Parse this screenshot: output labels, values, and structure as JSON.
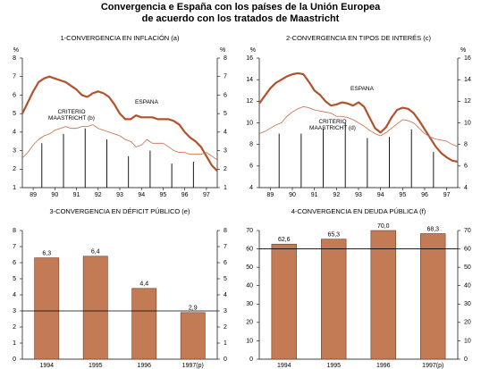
{
  "title": [
    "Convergencia e España con los países de la Unión Europea",
    "de acuerdo con los tratados de Maastricht"
  ],
  "chart_data": [
    {
      "type": "line",
      "title": "1-CONVERGENCIA EN INFLACIÓN (a)",
      "ylabel": "%",
      "y2label": "%",
      "x": [
        88.5,
        88.75,
        89,
        89.25,
        89.5,
        89.75,
        90,
        90.25,
        90.5,
        90.75,
        91,
        91.25,
        91.5,
        91.75,
        92,
        92.25,
        92.5,
        92.75,
        93,
        93.25,
        93.5,
        93.75,
        94,
        94.25,
        94.5,
        94.75,
        95,
        95.25,
        95.5,
        95.75,
        96,
        96.25,
        96.5,
        96.75,
        97,
        97.25,
        97.5
      ],
      "xlim": [
        88.5,
        97.5
      ],
      "xticks": [
        89,
        90,
        91,
        92,
        93,
        94,
        95,
        96,
        97
      ],
      "ylim": [
        1,
        8
      ],
      "yticks": [
        1,
        2,
        3,
        4,
        5,
        6,
        7,
        8
      ],
      "y2lim": [
        1,
        8
      ],
      "y2ticks": [
        1,
        2,
        3,
        4,
        5,
        6,
        7,
        8
      ],
      "series": [
        {
          "name": "ESPAÑA",
          "color": "#b0532c",
          "width": 2.2,
          "values": [
            5.0,
            5.6,
            6.2,
            6.7,
            6.9,
            7.0,
            6.9,
            6.8,
            6.7,
            6.5,
            6.3,
            6.0,
            5.9,
            6.1,
            6.2,
            6.1,
            5.9,
            5.5,
            5.0,
            4.7,
            4.7,
            4.9,
            4.8,
            4.8,
            4.8,
            4.7,
            4.7,
            4.7,
            4.6,
            4.4,
            4.0,
            3.7,
            3.5,
            3.2,
            2.7,
            2.2,
            1.9
          ]
        },
        {
          "name": "CRITERIO MAASTRICHT (b)",
          "color": "#c86a45",
          "width": 0.8,
          "values": [
            2.6,
            2.9,
            3.3,
            3.6,
            3.8,
            3.9,
            4.1,
            4.2,
            4.3,
            4.2,
            4.2,
            4.3,
            4.3,
            4.4,
            4.2,
            4.1,
            4.0,
            3.9,
            3.8,
            3.6,
            3.5,
            3.2,
            3.3,
            3.6,
            3.4,
            3.4,
            3.4,
            3.2,
            3.0,
            2.9,
            2.9,
            2.8,
            2.8,
            2.8,
            2.9,
            2.7,
            2.5
          ]
        },
        {
          "type": "stem",
          "color": "#000000",
          "x": [
            89.4,
            90.4,
            91.4,
            92.4,
            93.4,
            94.4,
            95.4,
            96.4
          ],
          "values": [
            3.4,
            3.9,
            4.2,
            3.6,
            2.7,
            3.0,
            2.3,
            2.4
          ]
        }
      ]
    },
    {
      "type": "line",
      "title": "2-CONVERGENCIA EN TIPOS DE INTERÉS (c)",
      "ylabel": "%",
      "y2label": "%",
      "x": [
        88.5,
        88.75,
        89,
        89.25,
        89.5,
        89.75,
        90,
        90.25,
        90.5,
        90.75,
        91,
        91.25,
        91.5,
        91.75,
        92,
        92.25,
        92.5,
        92.75,
        93,
        93.25,
        93.5,
        93.75,
        94,
        94.25,
        94.5,
        94.75,
        95,
        95.25,
        95.5,
        95.75,
        96,
        96.25,
        96.5,
        96.75,
        97,
        97.25,
        97.5
      ],
      "xlim": [
        88.5,
        97.5
      ],
      "xticks": [
        89,
        90,
        91,
        92,
        93,
        94,
        95,
        96,
        97
      ],
      "ylim": [
        4,
        16
      ],
      "yticks": [
        4,
        6,
        8,
        10,
        12,
        14,
        16
      ],
      "y2lim": [
        4,
        16
      ],
      "y2ticks": [
        4,
        6,
        8,
        10,
        12,
        14,
        16
      ],
      "series": [
        {
          "name": "ESPAÑA",
          "color": "#b0532c",
          "width": 2.2,
          "values": [
            11.8,
            12.5,
            13.2,
            13.7,
            14.0,
            14.3,
            14.5,
            14.6,
            14.5,
            13.8,
            13.0,
            12.6,
            12.0,
            11.6,
            11.7,
            11.9,
            11.8,
            11.6,
            11.9,
            11.5,
            10.5,
            9.5,
            9.1,
            9.6,
            10.5,
            11.2,
            11.4,
            11.3,
            10.9,
            10.2,
            9.4,
            8.6,
            7.8,
            7.2,
            6.8,
            6.5,
            6.4
          ]
        },
        {
          "name": "CRITERIO MAASTRICHT (d)",
          "color": "#c86a45",
          "width": 0.8,
          "values": [
            9.0,
            9.2,
            9.5,
            9.8,
            10.0,
            10.6,
            11.0,
            11.3,
            11.5,
            11.4,
            11.2,
            11.1,
            11.0,
            10.9,
            10.6,
            10.6,
            10.5,
            10.3,
            10.0,
            9.7,
            9.3,
            9.0,
            8.8,
            9.1,
            9.5,
            9.9,
            10.3,
            10.2,
            10.0,
            9.5,
            9.0,
            8.7,
            8.5,
            8.4,
            8.3,
            8.0,
            7.8
          ]
        },
        {
          "type": "stem",
          "color": "#000000",
          "x": [
            89.4,
            90.4,
            91.4,
            92.4,
            93.4,
            94.4,
            95.4,
            96.4
          ],
          "values": [
            9.0,
            9.0,
            9.5,
            10.0,
            8.6,
            8.7,
            9.4,
            7.3
          ]
        }
      ]
    },
    {
      "type": "bar",
      "title": "3-CONVERGENCIA EN DÉFICIT PÚBLICO (e)",
      "categories": [
        "1994",
        "1995",
        "1996",
        "1997(p)"
      ],
      "values": [
        6.3,
        6.4,
        4.4,
        2.9
      ],
      "value_labels": [
        "6,3",
        "6,4",
        "4,4",
        "2,9"
      ],
      "color": "#c27b55",
      "reference": 3,
      "ylim": [
        0,
        8
      ],
      "yticks": [
        0,
        1,
        2,
        3,
        4,
        5,
        6,
        7,
        8
      ],
      "y2lim": [
        0,
        8
      ],
      "y2ticks": [
        0,
        1,
        2,
        3,
        4,
        5,
        6,
        7,
        8
      ]
    },
    {
      "type": "bar",
      "title": "4-CONVERGENCIA EN DEUDA PÚBLICA (f)",
      "categories": [
        "1994",
        "1995",
        "1996",
        "1997(p)"
      ],
      "values": [
        62.6,
        65.3,
        70.0,
        68.3
      ],
      "value_labels": [
        "62,6",
        "65,3",
        "70,0",
        "68,3"
      ],
      "color": "#c27b55",
      "reference": 60,
      "ylim": [
        0,
        70
      ],
      "yticks": [
        0,
        10,
        20,
        30,
        40,
        50,
        60,
        70
      ],
      "y2lim": [
        0,
        70
      ],
      "y2ticks": [
        0,
        10,
        20,
        30,
        40,
        50,
        60,
        70
      ]
    }
  ]
}
